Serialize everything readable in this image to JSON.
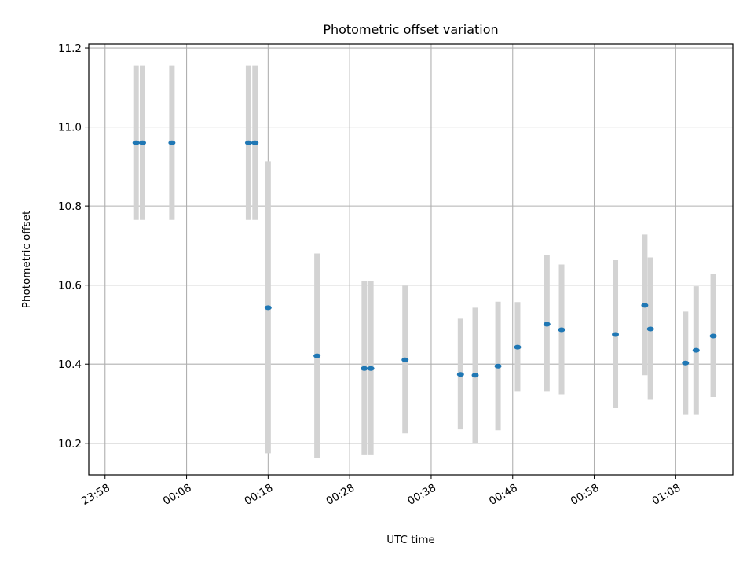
{
  "chart_data": {
    "type": "scatter",
    "title": "Photometric offset variation",
    "xlabel": "UTC time",
    "ylabel": "Photometric offset",
    "x_unit": "minutes",
    "xlim": [
      -2,
      77
    ],
    "ylim": [
      10.12,
      11.21
    ],
    "x_ticks": [
      {
        "value": 0,
        "label": "23:58"
      },
      {
        "value": 10,
        "label": "00:08"
      },
      {
        "value": 20,
        "label": "00:18"
      },
      {
        "value": 30,
        "label": "00:28"
      },
      {
        "value": 40,
        "label": "00:38"
      },
      {
        "value": 50,
        "label": "00:48"
      },
      {
        "value": 60,
        "label": "00:58"
      },
      {
        "value": 70,
        "label": "01:08"
      }
    ],
    "y_ticks": [
      {
        "value": 10.2,
        "label": "10.2"
      },
      {
        "value": 10.4,
        "label": "10.4"
      },
      {
        "value": 10.6,
        "label": "10.6"
      },
      {
        "value": 10.8,
        "label": "10.8"
      },
      {
        "value": 11.0,
        "label": "11.0"
      },
      {
        "value": 11.2,
        "label": "11.2"
      }
    ],
    "grid": true,
    "colors": {
      "points": "#1f77b4",
      "error_bars": "#d3d3d3",
      "grid": "#b0b0b0"
    },
    "points": [
      {
        "x": 3.8,
        "y": 10.96,
        "lo": 10.765,
        "hi": 11.155
      },
      {
        "x": 4.6,
        "y": 10.96,
        "lo": 10.765,
        "hi": 11.155
      },
      {
        "x": 8.2,
        "y": 10.96,
        "lo": 10.765,
        "hi": 11.155
      },
      {
        "x": 17.6,
        "y": 10.96,
        "lo": 10.765,
        "hi": 11.155
      },
      {
        "x": 18.4,
        "y": 10.96,
        "lo": 10.765,
        "hi": 11.155
      },
      {
        "x": 20.0,
        "y": 10.543,
        "lo": 10.175,
        "hi": 10.913
      },
      {
        "x": 26.0,
        "y": 10.421,
        "lo": 10.163,
        "hi": 10.68
      },
      {
        "x": 31.8,
        "y": 10.389,
        "lo": 10.17,
        "hi": 10.61
      },
      {
        "x": 32.6,
        "y": 10.389,
        "lo": 10.17,
        "hi": 10.61
      },
      {
        "x": 36.8,
        "y": 10.411,
        "lo": 10.225,
        "hi": 10.598
      },
      {
        "x": 43.6,
        "y": 10.374,
        "lo": 10.235,
        "hi": 10.515
      },
      {
        "x": 45.4,
        "y": 10.372,
        "lo": 10.2,
        "hi": 10.543
      },
      {
        "x": 48.2,
        "y": 10.395,
        "lo": 10.233,
        "hi": 10.558
      },
      {
        "x": 50.6,
        "y": 10.443,
        "lo": 10.33,
        "hi": 10.557
      },
      {
        "x": 54.2,
        "y": 10.501,
        "lo": 10.33,
        "hi": 10.675
      },
      {
        "x": 56.0,
        "y": 10.487,
        "lo": 10.324,
        "hi": 10.652
      },
      {
        "x": 62.6,
        "y": 10.475,
        "lo": 10.289,
        "hi": 10.663
      },
      {
        "x": 66.2,
        "y": 10.549,
        "lo": 10.372,
        "hi": 10.728
      },
      {
        "x": 66.9,
        "y": 10.489,
        "lo": 10.31,
        "hi": 10.67
      },
      {
        "x": 71.2,
        "y": 10.403,
        "lo": 10.272,
        "hi": 10.533
      },
      {
        "x": 72.5,
        "y": 10.435,
        "lo": 10.272,
        "hi": 10.597
      },
      {
        "x": 74.6,
        "y": 10.471,
        "lo": 10.317,
        "hi": 10.628
      }
    ]
  }
}
